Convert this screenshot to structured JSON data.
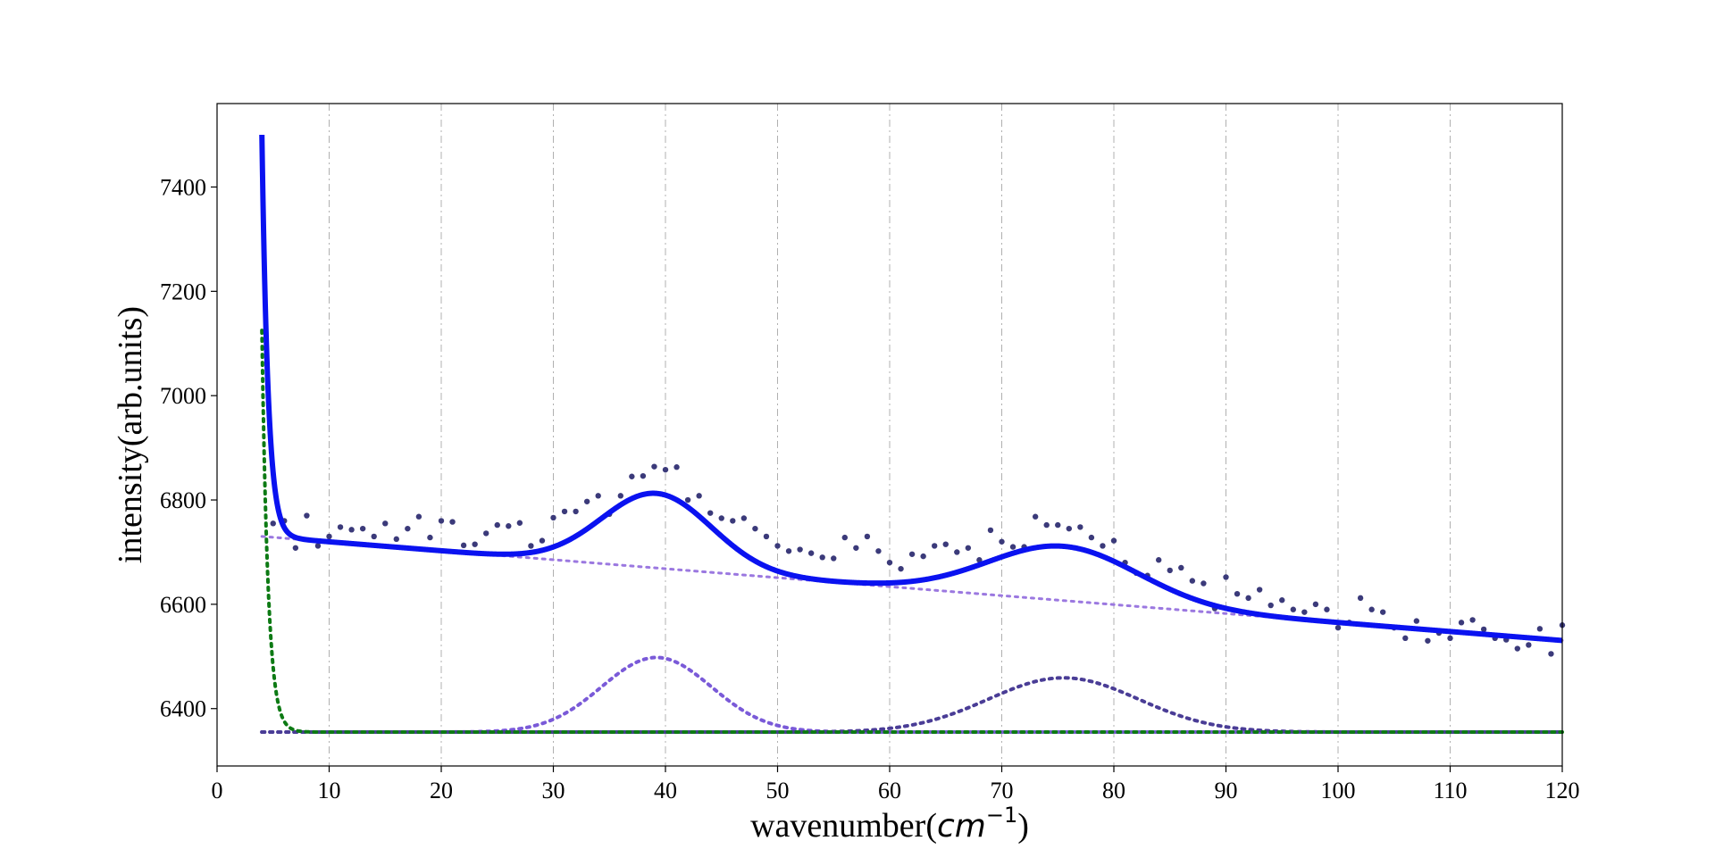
{
  "chart_data": {
    "type": "line",
    "xlabel": "wavenumber(",
    "xlabel_unit": "cm",
    "xlabel_unit_exp": "−1",
    "xlabel_close": ")",
    "ylabel": "intensity(arb.units)",
    "xlim": [
      0,
      120
    ],
    "ylim": [
      6290,
      7560
    ],
    "xticks": [
      0,
      10,
      20,
      30,
      40,
      50,
      60,
      70,
      80,
      90,
      100,
      110,
      120
    ],
    "yticks": [
      6400,
      6600,
      6800,
      7000,
      7200,
      7400
    ],
    "grid": "vertical-dashdot",
    "legend": "none",
    "colors": {
      "fit": "#0a12f0",
      "data": "#3b3a7a",
      "background": "#9b78e0",
      "peak1": "#7a5ad8",
      "peak2": "#4a3d96",
      "elastic": "#0d7a14",
      "baseline": "#44449a",
      "grid": "#b0b0b0"
    },
    "model": {
      "offset": 6355,
      "background": {
        "a": 6737,
        "b": -1.72
      },
      "elastic": {
        "amplitude": 770,
        "decay": 0.55,
        "x0": 4.0
      },
      "peaks": [
        {
          "center": 39.2,
          "height": 143,
          "sigma": 4.9
        },
        {
          "center": 75.5,
          "height": 104,
          "sigma": 6.7
        }
      ],
      "x_start": 4.0,
      "x_end": 120
    },
    "points": [
      [
        5.0,
        6755
      ],
      [
        6.0,
        6760
      ],
      [
        7.0,
        6708
      ],
      [
        8.0,
        6770
      ],
      [
        9.0,
        6712
      ],
      [
        10.0,
        6730
      ],
      [
        11.0,
        6748
      ],
      [
        12.0,
        6743
      ],
      [
        13.0,
        6745
      ],
      [
        14.0,
        6730
      ],
      [
        15.0,
        6755
      ],
      [
        16.0,
        6725
      ],
      [
        17.0,
        6745
      ],
      [
        18.0,
        6768
      ],
      [
        19.0,
        6728
      ],
      [
        20.0,
        6760
      ],
      [
        21.0,
        6758
      ],
      [
        22.0,
        6713
      ],
      [
        23.0,
        6715
      ],
      [
        24.0,
        6736
      ],
      [
        25.0,
        6752
      ],
      [
        26.0,
        6750
      ],
      [
        27.0,
        6756
      ],
      [
        28.0,
        6712
      ],
      [
        29.0,
        6722
      ],
      [
        30.0,
        6766
      ],
      [
        31.0,
        6778
      ],
      [
        32.0,
        6778
      ],
      [
        33.0,
        6797
      ],
      [
        34.0,
        6808
      ],
      [
        35.0,
        6773
      ],
      [
        36.0,
        6808
      ],
      [
        37.0,
        6845
      ],
      [
        38.0,
        6846
      ],
      [
        39.0,
        6864
      ],
      [
        40.0,
        6858
      ],
      [
        41.0,
        6863
      ],
      [
        42.0,
        6800
      ],
      [
        43.0,
        6808
      ],
      [
        44.0,
        6775
      ],
      [
        45.0,
        6765
      ],
      [
        46.0,
        6760
      ],
      [
        47.0,
        6765
      ],
      [
        48.0,
        6745
      ],
      [
        49.0,
        6730
      ],
      [
        50.0,
        6712
      ],
      [
        51.0,
        6702
      ],
      [
        52.0,
        6705
      ],
      [
        53.0,
        6698
      ],
      [
        54.0,
        6690
      ],
      [
        55.0,
        6688
      ],
      [
        56.0,
        6728
      ],
      [
        57.0,
        6708
      ],
      [
        58.0,
        6730
      ],
      [
        59.0,
        6702
      ],
      [
        60.0,
        6680
      ],
      [
        61.0,
        6668
      ],
      [
        62.0,
        6696
      ],
      [
        63.0,
        6692
      ],
      [
        64.0,
        6712
      ],
      [
        65.0,
        6715
      ],
      [
        66.0,
        6700
      ],
      [
        67.0,
        6708
      ],
      [
        68.0,
        6685
      ],
      [
        69.0,
        6742
      ],
      [
        70.0,
        6720
      ],
      [
        71.0,
        6710
      ],
      [
        72.0,
        6710
      ],
      [
        73.0,
        6768
      ],
      [
        74.0,
        6752
      ],
      [
        75.0,
        6752
      ],
      [
        76.0,
        6745
      ],
      [
        77.0,
        6748
      ],
      [
        78.0,
        6728
      ],
      [
        79.0,
        6712
      ],
      [
        80.0,
        6722
      ],
      [
        81.0,
        6680
      ],
      [
        82.0,
        6660
      ],
      [
        83.0,
        6655
      ],
      [
        84.0,
        6685
      ],
      [
        85.0,
        6665
      ],
      [
        86.0,
        6670
      ],
      [
        87.0,
        6645
      ],
      [
        88.0,
        6640
      ],
      [
        89.0,
        6592
      ],
      [
        90.0,
        6652
      ],
      [
        91.0,
        6620
      ],
      [
        92.0,
        6612
      ],
      [
        93.0,
        6628
      ],
      [
        94.0,
        6598
      ],
      [
        95.0,
        6608
      ],
      [
        96.0,
        6590
      ],
      [
        97.0,
        6585
      ],
      [
        98.0,
        6600
      ],
      [
        99.0,
        6590
      ],
      [
        100.0,
        6555
      ],
      [
        101.0,
        6565
      ],
      [
        102.0,
        6612
      ],
      [
        103.0,
        6590
      ],
      [
        104.0,
        6585
      ],
      [
        105.0,
        6555
      ],
      [
        106.0,
        6535
      ],
      [
        107.0,
        6568
      ],
      [
        108.0,
        6530
      ],
      [
        109.0,
        6545
      ],
      [
        110.0,
        6535
      ],
      [
        111.0,
        6565
      ],
      [
        112.0,
        6570
      ],
      [
        113.0,
        6552
      ],
      [
        114.0,
        6535
      ],
      [
        115.0,
        6532
      ],
      [
        116.0,
        6515
      ],
      [
        117.0,
        6522
      ],
      [
        118.0,
        6553
      ],
      [
        119.0,
        6505
      ],
      [
        120.0,
        6560
      ]
    ]
  }
}
